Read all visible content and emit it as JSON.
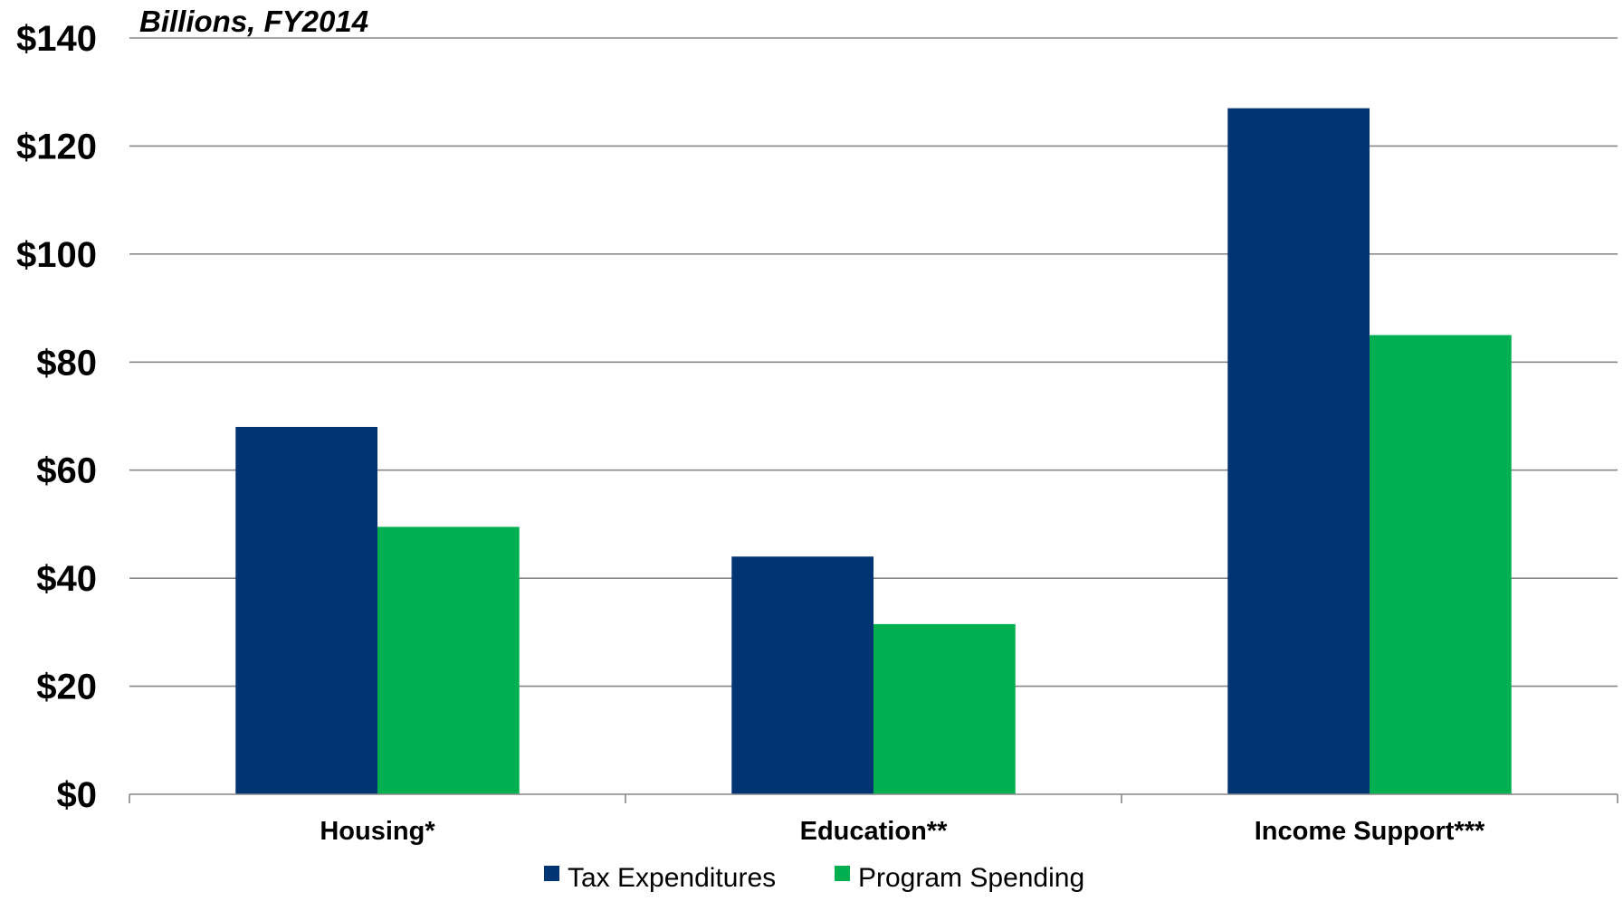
{
  "chart_data": {
    "type": "bar",
    "subtitle": "Billions, FY2014",
    "categories": [
      "Housing*",
      "Education**",
      "Income Support***"
    ],
    "series": [
      {
        "name": "Tax Expenditures",
        "color": "#003473",
        "values": [
          68,
          44,
          127
        ]
      },
      {
        "name": "Program Spending",
        "color": "#00B050",
        "values": [
          49.5,
          31.5,
          85
        ]
      }
    ],
    "ylim": [
      0,
      140
    ],
    "yticks": [
      0,
      20,
      40,
      60,
      80,
      100,
      120,
      140
    ],
    "ytick_labels": [
      "$0",
      "$20",
      "$40",
      "$60",
      "$80",
      "$100",
      "$120",
      "$140"
    ],
    "grid": true,
    "legend": "bottom-center"
  }
}
